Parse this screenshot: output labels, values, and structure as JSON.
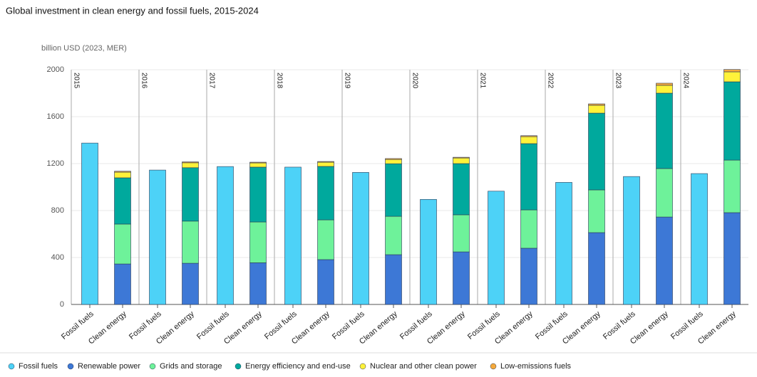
{
  "chart_data": {
    "type": "stacked-bar",
    "title": "Global investment in clean energy and fossil fuels, 2015-2024",
    "y_axis_label": "billion USD (2023, MER)",
    "groups": [
      "2015",
      "2016",
      "2017",
      "2018",
      "2019",
      "2020",
      "2021",
      "2022",
      "2023",
      "2024"
    ],
    "categories": [
      "Fossil fuels",
      "Clean energy",
      "Fossil fuels",
      "Clean energy",
      "Fossil fuels",
      "Clean energy",
      "Fossil fuels",
      "Clean energy",
      "Fossil fuels",
      "Clean energy",
      "Fossil fuels",
      "Clean energy",
      "Fossil fuels",
      "Clean energy",
      "Fossil fuels",
      "Clean energy",
      "Fossil fuels",
      "Clean energy",
      "Fossil fuels",
      "Clean energy"
    ],
    "series": [
      {
        "name": "Fossil fuels",
        "color": "#4dd2f7",
        "values": [
          1375,
          null,
          1145,
          null,
          1175,
          null,
          1170,
          null,
          1125,
          null,
          895,
          null,
          965,
          null,
          1040,
          null,
          1090,
          null,
          1115,
          null
        ]
      },
      {
        "name": "Renewable power",
        "color": "#3d78d6",
        "values": [
          null,
          345,
          null,
          351,
          null,
          355,
          null,
          382,
          null,
          424,
          null,
          448,
          null,
          479,
          null,
          612,
          null,
          745,
          null,
          782
        ]
      },
      {
        "name": "Grids and storage",
        "color": "#6ef29a",
        "values": [
          null,
          340,
          null,
          359,
          null,
          348,
          null,
          339,
          null,
          327,
          null,
          316,
          null,
          327,
          null,
          364,
          null,
          413,
          null,
          448
        ]
      },
      {
        "name": "Energy efficiency and end-use",
        "color": "#00a99d",
        "values": [
          null,
          394,
          null,
          455,
          null,
          467,
          null,
          455,
          null,
          448,
          null,
          436,
          null,
          564,
          null,
          654,
          null,
          642,
          null,
          667
        ]
      },
      {
        "name": "Nuclear and other clean power",
        "color": "#fff23a",
        "values": [
          null,
          48,
          null,
          42,
          null,
          36,
          null,
          36,
          null,
          36,
          null,
          48,
          null,
          60,
          null,
          67,
          null,
          67,
          null,
          85
        ]
      },
      {
        "name": "Low-emissions fuels",
        "color": "#f5a93b",
        "values": [
          null,
          8,
          null,
          8,
          null,
          6,
          null,
          6,
          null,
          8,
          null,
          6,
          null,
          8,
          null,
          12,
          null,
          18,
          null,
          20
        ]
      }
    ],
    "ylim": [
      0,
      2000
    ],
    "yticks": [
      0,
      400,
      800,
      1200,
      1600,
      2000
    ],
    "grid": true,
    "legend": "bottom"
  }
}
